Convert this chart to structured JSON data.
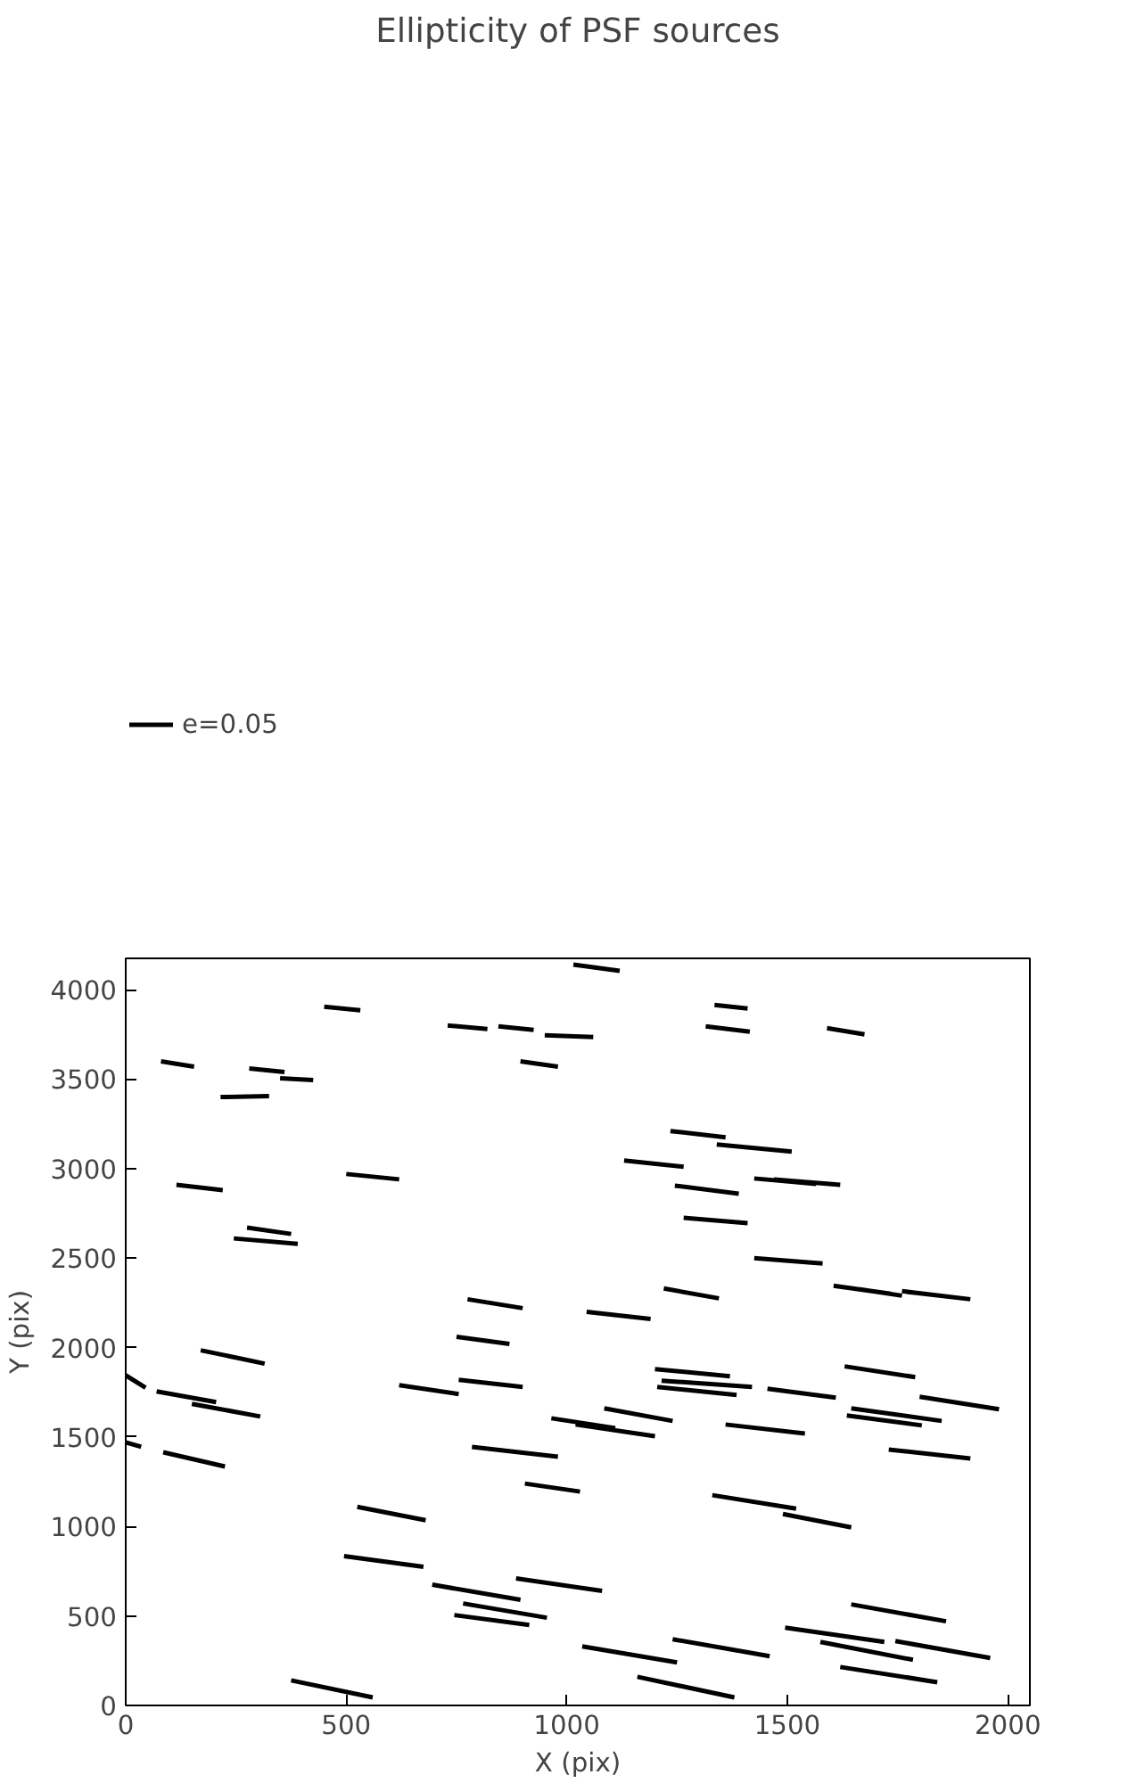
{
  "chart_data": {
    "type": "line",
    "title": "Ellipticity of PSF sources",
    "xlabel": "X (pix)",
    "ylabel": "Y (pix)",
    "xlim": [
      0,
      2050
    ],
    "ylim": [
      0,
      4175
    ],
    "xticks": [
      0,
      500,
      1000,
      1500,
      2000
    ],
    "yticks": [
      0,
      500,
      1000,
      1500,
      2000,
      2500,
      3000,
      3500,
      4000
    ],
    "grid": false,
    "legend": "top left",
    "marker": "none",
    "line_style": "solid",
    "series": [
      {
        "name": "e=0.05",
        "color": "#000000",
        "x": [
          1015,
          1120,
          null,
          450,
          532,
          null,
          730,
          820,
          null,
          845,
          925,
          null,
          950,
          1060,
          null,
          1335,
          1410,
          null,
          1315,
          1415,
          null,
          1590,
          1675,
          null,
          80,
          155,
          null,
          280,
          360,
          null,
          350,
          425,
          null,
          215,
          325,
          null,
          895,
          980,
          null,
          1235,
          1360,
          null,
          1340,
          1510,
          null,
          1130,
          1265,
          null,
          1245,
          1390,
          null,
          1425,
          1565,
          null,
          1470,
          1620,
          null,
          500,
          620,
          null,
          115,
          220,
          null,
          275,
          375,
          null,
          245,
          390,
          null,
          1265,
          1410,
          null,
          1425,
          1580,
          null,
          1605,
          1735,
          null,
          1665,
          1760,
          null,
          1760,
          1915,
          null,
          1220,
          1345,
          null,
          1045,
          1190,
          null,
          775,
          900,
          null,
          750,
          870,
          null,
          170,
          315,
          null,
          0,
          45,
          null,
          70,
          205,
          null,
          150,
          305,
          null,
          620,
          755,
          null,
          755,
          900,
          null,
          1200,
          1370,
          null,
          1215,
          1420,
          null,
          1205,
          1385,
          null,
          1455,
          1610,
          null,
          1630,
          1790,
          null,
          1800,
          1980,
          null,
          1645,
          1850,
          null,
          1635,
          1805,
          null,
          965,
          1110,
          null,
          1020,
          1200,
          null,
          1085,
          1240,
          null,
          1360,
          1540,
          null,
          785,
          980,
          null,
          0,
          35,
          null,
          85,
          225,
          null,
          1730,
          1915,
          null,
          905,
          1030,
          null,
          525,
          680,
          null,
          1330,
          1520,
          null,
          1490,
          1645,
          null,
          495,
          675,
          null,
          695,
          895,
          null,
          885,
          1080,
          null,
          765,
          955,
          null,
          745,
          915,
          null,
          1645,
          1860,
          null,
          1495,
          1720,
          null,
          1575,
          1785,
          null,
          1745,
          1960,
          null,
          1035,
          1250,
          null,
          1240,
          1460,
          null,
          1160,
          1380,
          null,
          1620,
          1840,
          null,
          375,
          560
        ],
        "values": [
          4140,
          4105,
          null,
          3905,
          3885,
          null,
          3800,
          3780,
          null,
          3795,
          3775,
          null,
          3745,
          3735,
          null,
          3915,
          3895,
          null,
          3795,
          3765,
          null,
          3785,
          3750,
          null,
          3600,
          3570,
          null,
          3560,
          3540,
          null,
          3505,
          3495,
          null,
          3400,
          3405,
          null,
          3600,
          3570,
          null,
          3210,
          3175,
          null,
          3135,
          3095,
          null,
          3045,
          3010,
          null,
          2905,
          2860,
          null,
          2945,
          2915,
          null,
          2940,
          2910,
          null,
          2970,
          2940,
          null,
          2910,
          2880,
          null,
          2670,
          2635,
          null,
          2610,
          2580,
          null,
          2725,
          2695,
          null,
          2500,
          2470,
          null,
          2345,
          2300,
          null,
          2325,
          2290,
          null,
          2315,
          2270,
          null,
          2330,
          2275,
          null,
          2200,
          2160,
          null,
          2270,
          2220,
          null,
          2060,
          2020,
          null,
          1985,
          1910,
          null,
          1845,
          1775,
          null,
          1755,
          1695,
          null,
          1685,
          1615,
          null,
          1790,
          1740,
          null,
          1820,
          1780,
          null,
          1880,
          1840,
          null,
          1815,
          1780,
          null,
          1780,
          1735,
          null,
          1770,
          1720,
          null,
          1895,
          1835,
          null,
          1725,
          1655,
          null,
          1660,
          1590,
          null,
          1620,
          1565,
          null,
          1605,
          1550,
          null,
          1570,
          1505,
          null,
          1660,
          1590,
          null,
          1570,
          1520,
          null,
          1445,
          1390,
          null,
          1470,
          1445,
          null,
          1415,
          1335,
          null,
          1430,
          1380,
          null,
          1240,
          1195,
          null,
          1110,
          1035,
          null,
          1175,
          1100,
          null,
          1070,
          995,
          null,
          835,
          775,
          null,
          675,
          590,
          null,
          710,
          640,
          null,
          570,
          490,
          null,
          505,
          450,
          null,
          565,
          470,
          null,
          435,
          355,
          null,
          355,
          255,
          null,
          360,
          265,
          null,
          330,
          240,
          null,
          370,
          275,
          null,
          160,
          45,
          null,
          215,
          130,
          null,
          140,
          45
        ]
      }
    ]
  }
}
